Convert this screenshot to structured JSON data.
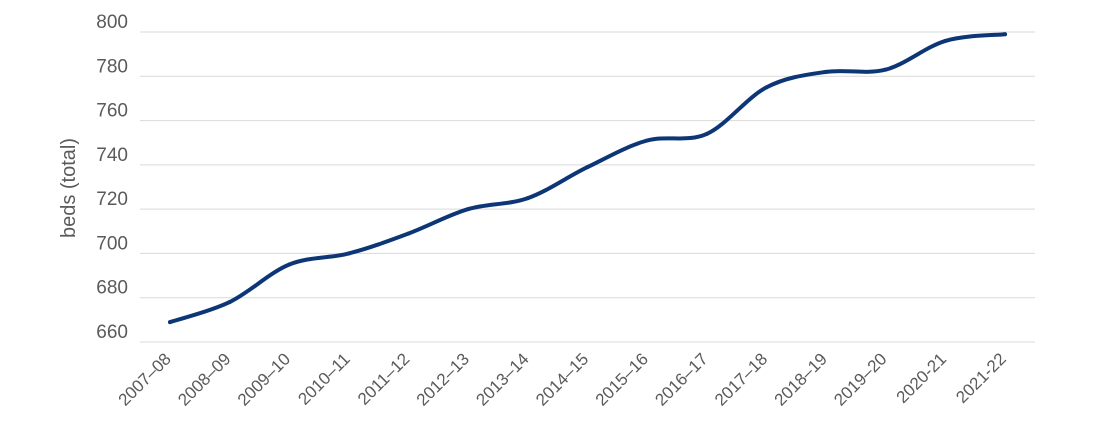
{
  "chart_data": {
    "type": "line",
    "title": "",
    "xlabel": "",
    "ylabel": "beds (total)",
    "ylim": [
      660,
      800
    ],
    "yticks": [
      660,
      680,
      700,
      720,
      740,
      760,
      780,
      800
    ],
    "grid": true,
    "legend": "none",
    "categories": [
      "2007–08",
      "2008–09",
      "2009–10",
      "2010–11",
      "2011–12",
      "2012–13",
      "2013–14",
      "2014–15",
      "2015–16",
      "2016–17",
      "2017–18",
      "2018–19",
      "2019–20",
      "2020-21",
      "2021-22"
    ],
    "series": [
      {
        "color": "#0d3677",
        "values": [
          669,
          678,
          695,
          700,
          709,
          720,
          725,
          739,
          751,
          754,
          775,
          782,
          783,
          796,
          799
        ]
      }
    ]
  }
}
